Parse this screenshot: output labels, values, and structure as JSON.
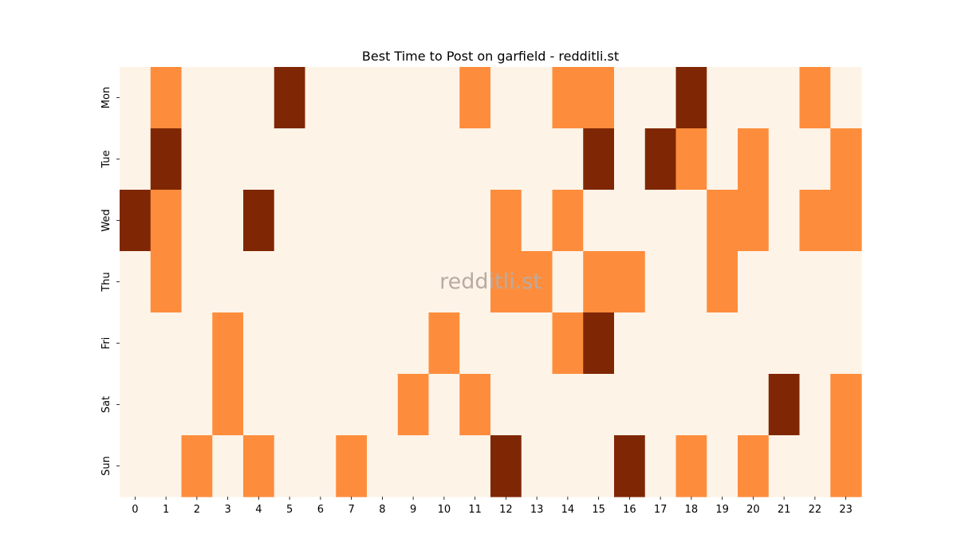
{
  "chart_data": {
    "type": "heatmap",
    "title": "Best Time to Post on garfield - redditli.st",
    "watermark": "redditli.st",
    "x_labels": [
      "0",
      "1",
      "2",
      "3",
      "4",
      "5",
      "6",
      "7",
      "8",
      "9",
      "10",
      "11",
      "12",
      "13",
      "14",
      "15",
      "16",
      "17",
      "18",
      "19",
      "20",
      "21",
      "22",
      "23"
    ],
    "y_labels": [
      "Mon",
      "Tue",
      "Wed",
      "Thu",
      "Fri",
      "Sat",
      "Sun"
    ],
    "levels": [
      0,
      1,
      2
    ],
    "colors": [
      "#fef3e7",
      "#fd8d3c",
      "#7f2704"
    ],
    "values": [
      [
        0,
        1,
        0,
        0,
        0,
        2,
        0,
        0,
        0,
        0,
        0,
        1,
        0,
        0,
        1,
        1,
        0,
        0,
        2,
        0,
        0,
        0,
        1,
        0
      ],
      [
        0,
        2,
        0,
        0,
        0,
        0,
        0,
        0,
        0,
        0,
        0,
        0,
        0,
        0,
        0,
        2,
        0,
        2,
        1,
        0,
        1,
        0,
        0,
        1
      ],
      [
        2,
        1,
        0,
        0,
        2,
        0,
        0,
        0,
        0,
        0,
        0,
        0,
        1,
        0,
        1,
        0,
        0,
        0,
        0,
        1,
        1,
        0,
        1,
        1
      ],
      [
        0,
        1,
        0,
        0,
        0,
        0,
        0,
        0,
        0,
        0,
        0,
        0,
        1,
        1,
        0,
        1,
        1,
        0,
        0,
        1,
        0,
        0,
        0,
        0
      ],
      [
        0,
        0,
        0,
        1,
        0,
        0,
        0,
        0,
        0,
        0,
        1,
        0,
        0,
        0,
        1,
        2,
        0,
        0,
        0,
        0,
        0,
        0,
        0,
        0
      ],
      [
        0,
        0,
        0,
        1,
        0,
        0,
        0,
        0,
        0,
        1,
        0,
        1,
        0,
        0,
        0,
        0,
        0,
        0,
        0,
        0,
        0,
        2,
        0,
        1
      ],
      [
        0,
        0,
        1,
        0,
        1,
        0,
        0,
        1,
        0,
        0,
        0,
        0,
        2,
        0,
        0,
        0,
        2,
        0,
        1,
        0,
        1,
        0,
        0,
        1
      ]
    ],
    "xlabel": "",
    "ylabel": "",
    "legend": "none",
    "grid": false
  }
}
